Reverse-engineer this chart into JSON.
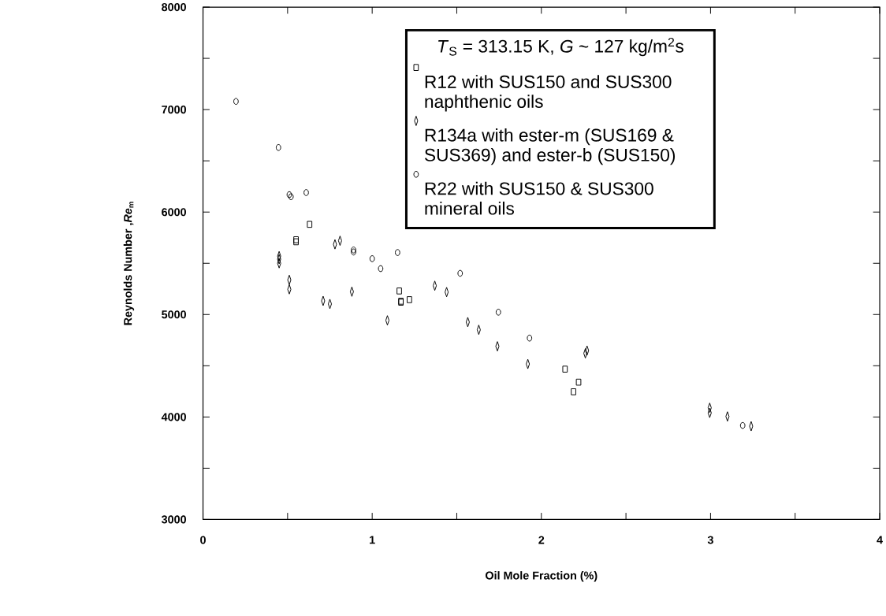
{
  "chart_data": {
    "type": "scatter",
    "xlabel": "Oil Mole Fraction (%)",
    "ylabel": "Reynolds Number ,*Re*$_{m}$",
    "legend_title": "*T*$_{S}$ = 313.15 K, *G* ~ 127 kg/m$^{2}$s",
    "xlim": [
      0,
      4
    ],
    "ylim": [
      3000,
      8000
    ],
    "xticks": [
      0,
      {
        "value": 0.5,
        "label": null
      },
      1,
      {
        "value": 1.5,
        "label": null
      },
      2,
      {
        "value": 2.5,
        "label": null
      },
      3,
      {
        "value": 3.5,
        "label": null
      },
      4
    ],
    "yticks": [
      3000,
      {
        "value": 3500,
        "label": null
      },
      4000,
      {
        "value": 4500,
        "label": null
      },
      5000,
      {
        "value": 5500,
        "label": null
      },
      6000,
      {
        "value": 6500,
        "label": null
      },
      7000,
      {
        "value": 7500,
        "label": null
      },
      8000
    ],
    "legend": "top right",
    "grid": false,
    "series": [
      {
        "name": "R12 with SUS150 and SUS300 naphthenic oils",
        "color": "#000000",
        "marker": "square",
        "x": [
          0.63,
          0.55,
          0.55,
          1.16,
          1.17,
          1.17,
          1.22,
          2.14,
          2.22,
          2.19
        ],
        "values": [
          5880,
          5710,
          5730,
          5230,
          5120,
          5130,
          5145,
          4467,
          4340,
          4246
        ]
      },
      {
        "name": "R134a with ester-m (SUS169 & SUS369) and ester-b (SUS150)",
        "color": "#000000",
        "marker": "diamond",
        "x": [
          0.45,
          0.45,
          0.45,
          0.51,
          0.51,
          0.78,
          0.81,
          0.88,
          0.71,
          0.75,
          1.09,
          1.37,
          1.44,
          1.565,
          1.63,
          1.74,
          1.92,
          2.26,
          2.27,
          2.995,
          2.995,
          3.1,
          3.24
        ],
        "values": [
          5500,
          5540,
          5570,
          5338,
          5246,
          5685,
          5720,
          5223,
          5133,
          5103,
          4943,
          5281,
          5219,
          4926,
          4851,
          4690,
          4517,
          4621,
          4648,
          4040,
          4090,
          4005,
          3910
        ]
      },
      {
        "name": "R22 with SUS150 & SUS300 mineral oils",
        "color": "#000000",
        "marker": "circle",
        "x": [
          0.195,
          0.446,
          0.51,
          0.52,
          0.61,
          0.89,
          0.89,
          1.0,
          1.05,
          1.15,
          1.52,
          1.746,
          1.93,
          3.19
        ],
        "values": [
          7080,
          6630,
          6170,
          6150,
          6190,
          5610,
          5630,
          5545,
          5448,
          5605,
          5402,
          5023,
          4770,
          3917
        ]
      }
    ]
  }
}
